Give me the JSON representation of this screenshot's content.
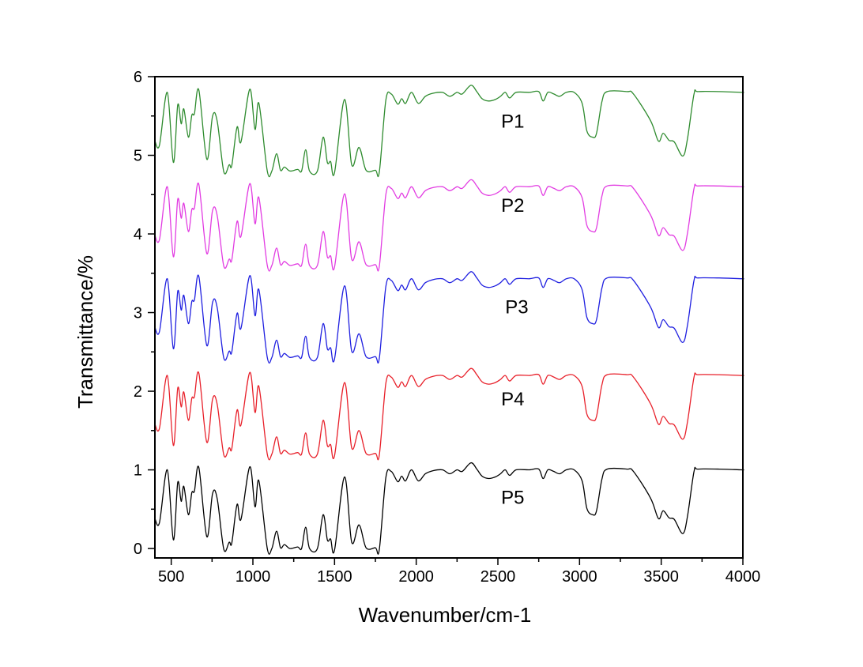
{
  "chart_data": {
    "type": "line",
    "title": "",
    "xlabel": "Wavenumber/cm-1",
    "ylabel": "Transmittance/%",
    "xlim": [
      400,
      4000
    ],
    "ylim": [
      -0.12,
      6.0
    ],
    "xticks": [
      500,
      1000,
      1500,
      2000,
      2500,
      3000,
      3500,
      4000
    ],
    "xtick_labels": [
      "500",
      "1000",
      "1500",
      "2000",
      "2500",
      "3000",
      "3500",
      "4000"
    ],
    "yticks": [
      0,
      1,
      2,
      3,
      4,
      5,
      6
    ],
    "ytick_labels": [
      "0",
      "1",
      "2",
      "3",
      "4",
      "5",
      "6"
    ],
    "grid": false,
    "legend": "none (series labelled inline)",
    "profile": {
      "x": [
        400,
        428,
        476,
        513,
        540,
        561,
        577,
        605,
        626,
        642,
        669,
        718,
        753,
        782,
        822,
        855,
        871,
        903,
        927,
        981,
        1013,
        1037,
        1088,
        1116,
        1145,
        1169,
        1193,
        1227,
        1274,
        1298,
        1323,
        1347,
        1395,
        1430,
        1456,
        1476,
        1500,
        1561,
        1605,
        1650,
        1693,
        1750,
        1774,
        1814,
        1847,
        1887,
        1911,
        1935,
        1971,
        2013,
        2056,
        2105,
        2161,
        2206,
        2250,
        2282,
        2335,
        2371,
        2403,
        2443,
        2484,
        2516,
        2545,
        2572,
        2612,
        2693,
        2750,
        2777,
        2806,
        2842,
        2878,
        2919,
        2967,
        3016,
        3045,
        3080,
        3104,
        3137,
        3169,
        3290,
        3330,
        3435,
        3483,
        3512,
        3548,
        3580,
        3632,
        3661,
        3701,
        3725,
        3855,
        3992,
        4000
      ],
      "y": [
        0.38,
        0.33,
        1.0,
        0.11,
        0.84,
        0.6,
        0.79,
        0.43,
        0.71,
        0.73,
        1.03,
        0.15,
        0.7,
        0.63,
        -0.01,
        0.08,
        0.07,
        0.56,
        0.37,
        1.04,
        0.53,
        0.86,
        0.0,
        0.0,
        0.22,
        0.01,
        0.05,
        0.0,
        0.02,
        0.0,
        0.27,
        0.0,
        0.0,
        0.43,
        0.11,
        0.12,
        -0.02,
        0.91,
        0.08,
        0.3,
        0.01,
        0.01,
        -0.01,
        0.9,
        0.98,
        0.85,
        0.92,
        0.86,
        1.0,
        0.86,
        0.95,
        0.99,
        1.0,
        0.95,
        1.0,
        0.98,
        1.09,
        1.01,
        0.92,
        0.89,
        0.91,
        0.95,
        1.0,
        0.93,
        1.0,
        1.0,
        1.01,
        0.89,
        1.0,
        0.98,
        0.95,
        1.0,
        1.0,
        0.86,
        0.51,
        0.43,
        0.48,
        0.88,
        1.01,
        1.01,
        0.98,
        0.64,
        0.38,
        0.48,
        0.39,
        0.37,
        0.19,
        0.41,
        0.98,
        1.01,
        1.01,
        1.0,
        1.0
      ]
    },
    "series": [
      {
        "name": "P1",
        "offset": 4.8,
        "color": "#2e8b2e",
        "label_pos": [
          2520,
          5.35
        ]
      },
      {
        "name": "P2",
        "offset": 3.6,
        "color": "#e23ce2",
        "label_pos": [
          2520,
          4.28
        ]
      },
      {
        "name": "P3",
        "offset": 2.43,
        "color": "#1f1fe0",
        "label_pos": [
          2545,
          2.99
        ]
      },
      {
        "name": "P4",
        "offset": 1.2,
        "color": "#e8202a",
        "label_pos": [
          2520,
          1.82
        ]
      },
      {
        "name": "P5",
        "offset": 0.0,
        "color": "#000000",
        "label_pos": [
          2520,
          0.57
        ]
      }
    ]
  }
}
